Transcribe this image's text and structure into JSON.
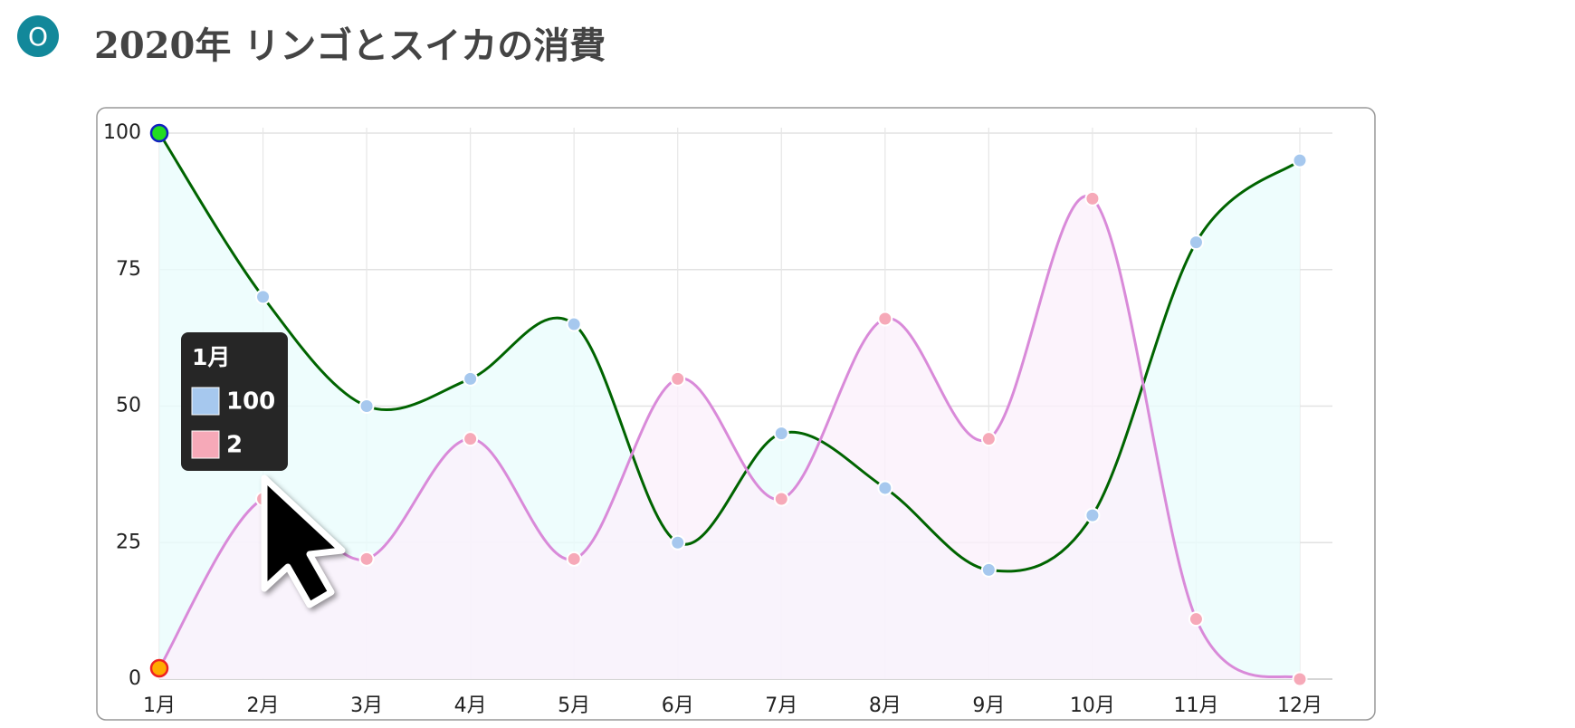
{
  "badge": "O",
  "chart_data": {
    "type": "line",
    "title": "2020年 リンゴとスイカの消費",
    "categories": [
      "1月",
      "2月",
      "3月",
      "4月",
      "5月",
      "6月",
      "7月",
      "8月",
      "9月",
      "10月",
      "11月",
      "12月"
    ],
    "series": [
      {
        "color": "#006400",
        "point_color": "#a6c8ee",
        "area_color": "#eafcfc",
        "values": [
          100,
          70,
          50,
          55,
          65,
          25,
          45,
          35,
          20,
          30,
          80,
          95
        ]
      },
      {
        "color": "#d98ad9",
        "point_color": "#f6a9b8",
        "area_color": "#fbf0fb",
        "values": [
          2,
          33,
          22,
          44,
          22,
          55,
          33,
          66,
          44,
          88,
          11,
          0
        ]
      }
    ],
    "ylim": [
      0,
      100
    ],
    "yticks": [
      0,
      25,
      50,
      75,
      100
    ],
    "grid": true,
    "smooth": true,
    "tooltip_index": 0
  }
}
